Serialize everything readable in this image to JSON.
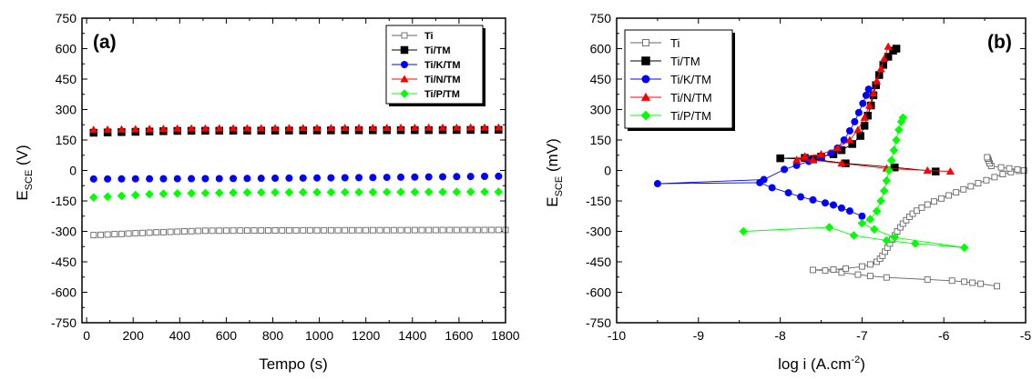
{
  "colors": {
    "Ti": "#666666",
    "Ti/TM": "#000000",
    "Ti/K/TM": "#0000ff",
    "Ti/N/TM": "#ff0000",
    "Ti/P/TM": "#00ff00"
  },
  "chart_data": [
    {
      "type": "scatter",
      "panel_label": "(a)",
      "xlabel": "Tempo (s)",
      "ylabel_main": "E",
      "ylabel_sub": "SCE",
      "ylabel_unit": " (V)",
      "xlim": [
        -20,
        1800
      ],
      "ylim": [
        -750,
        750
      ],
      "xticks": [
        0,
        200,
        400,
        600,
        800,
        1000,
        1200,
        1400,
        1600,
        1800
      ],
      "yticks": [
        -750,
        -600,
        -450,
        -300,
        -150,
        0,
        150,
        300,
        450,
        600,
        750
      ],
      "legend_position": "top-right",
      "series": [
        {
          "name": "Ti",
          "marker": "square-open",
          "x_start": 30,
          "x_step": 30,
          "x_end": 1800,
          "y": [
            [
              0,
              -320
            ],
            [
              300,
              -305
            ],
            [
              500,
              -297
            ],
            [
              900,
              -295
            ],
            [
              1800,
              -293
            ]
          ]
        },
        {
          "name": "Ti/TM",
          "marker": "square",
          "x_start": 30,
          "x_step": 60,
          "x_end": 1800,
          "y": [
            [
              0,
              185
            ],
            [
              400,
              195
            ],
            [
              1800,
              200
            ]
          ]
        },
        {
          "name": "Ti/K/TM",
          "marker": "circle",
          "x_start": 30,
          "x_step": 60,
          "x_end": 1800,
          "y": [
            [
              0,
              -42
            ],
            [
              600,
              -40
            ],
            [
              1200,
              -35
            ],
            [
              1800,
              -28
            ]
          ]
        },
        {
          "name": "Ti/N/TM",
          "marker": "triangle",
          "x_start": 30,
          "x_step": 60,
          "x_end": 1800,
          "y": [
            [
              0,
              200
            ],
            [
              400,
              207
            ],
            [
              1800,
              212
            ]
          ]
        },
        {
          "name": "Ti/P/TM",
          "marker": "diamond",
          "x_start": 30,
          "x_step": 60,
          "x_end": 1800,
          "y": [
            [
              0,
              -135
            ],
            [
              300,
              -115
            ],
            [
              700,
              -108
            ],
            [
              1800,
              -105
            ]
          ]
        }
      ]
    },
    {
      "type": "line",
      "panel_label": "(b)",
      "xlabel": "log i (A.cm",
      "xlabel_sup": "-2",
      "xlabel_close": ")",
      "ylabel_main": "E",
      "ylabel_sub": "SCE",
      "ylabel_unit": " (mV)",
      "xlim": [
        -10,
        -5
      ],
      "ylim": [
        -750,
        750
      ],
      "xticks": [
        -10,
        -9,
        -8,
        -7,
        -6,
        -5
      ],
      "yticks": [
        -750,
        -600,
        -450,
        -300,
        -150,
        0,
        150,
        300,
        450,
        600,
        750
      ],
      "legend_position": "top-left",
      "series": [
        {
          "name": "Ti",
          "marker": "square-open",
          "x_decreasing": true,
          "points": [
            [
              -5.35,
              -570
            ],
            [
              -5.55,
              -558
            ],
            [
              -5.65,
              -553
            ],
            [
              -5.75,
              -548
            ],
            [
              -5.9,
              -543
            ],
            [
              -6.2,
              -537
            ],
            [
              -6.7,
              -527
            ],
            [
              -6.9,
              -520
            ],
            [
              -7.05,
              -513
            ],
            [
              -7.25,
              -503
            ],
            [
              -7.45,
              -493
            ],
            [
              -7.6,
              -490
            ],
            [
              -7.35,
              -488
            ],
            [
              -7.2,
              -483
            ],
            [
              -7.0,
              -473
            ],
            [
              -6.9,
              -463
            ],
            [
              -6.82,
              -450
            ],
            [
              -6.78,
              -435
            ],
            [
              -6.75,
              -420
            ],
            [
              -6.72,
              -400
            ],
            [
              -6.69,
              -380
            ],
            [
              -6.66,
              -360
            ],
            [
              -6.63,
              -340
            ],
            [
              -6.6,
              -320
            ],
            [
              -6.57,
              -300
            ],
            [
              -6.53,
              -280
            ],
            [
              -6.5,
              -262
            ],
            [
              -6.46,
              -245
            ],
            [
              -6.42,
              -228
            ],
            [
              -6.38,
              -213
            ],
            [
              -6.33,
              -198
            ],
            [
              -6.27,
              -183
            ],
            [
              -6.2,
              -168
            ],
            [
              -6.12,
              -153
            ],
            [
              -6.03,
              -138
            ],
            [
              -5.94,
              -123
            ],
            [
              -5.85,
              -108
            ],
            [
              -5.76,
              -93
            ],
            [
              -5.67,
              -78
            ],
            [
              -5.58,
              -63
            ],
            [
              -5.48,
              -48
            ],
            [
              -5.38,
              -33
            ],
            [
              -5.28,
              -18
            ],
            [
              -5.18,
              -8
            ],
            [
              -5.08,
              -2
            ],
            [
              -5.02,
              0
            ],
            [
              -5.1,
              5
            ],
            [
              -5.2,
              10
            ],
            [
              -5.3,
              15
            ],
            [
              -5.42,
              22
            ],
            [
              -5.44,
              35
            ],
            [
              -5.45,
              48
            ],
            [
              -5.46,
              58
            ],
            [
              -5.47,
              65
            ]
          ]
        },
        {
          "name": "Ti/TM",
          "marker": "square",
          "x_decreasing": false,
          "points": [
            [
              -6.1,
              -5
            ],
            [
              -6.6,
              15
            ],
            [
              -7.2,
              35
            ],
            [
              -7.6,
              55
            ],
            [
              -8.0,
              60
            ],
            [
              -7.7,
              62
            ],
            [
              -7.5,
              68
            ],
            [
              -7.35,
              80
            ],
            [
              -7.25,
              100
            ],
            [
              -7.12,
              130
            ],
            [
              -7.02,
              170
            ],
            [
              -6.97,
              220
            ],
            [
              -6.93,
              270
            ],
            [
              -6.89,
              320
            ],
            [
              -6.86,
              370
            ],
            [
              -6.83,
              420
            ],
            [
              -6.79,
              470
            ],
            [
              -6.74,
              520
            ],
            [
              -6.68,
              560
            ],
            [
              -6.62,
              590
            ],
            [
              -6.58,
              600
            ]
          ]
        },
        {
          "name": "Ti/K/TM",
          "marker": "circle",
          "x_decreasing": false,
          "points": [
            [
              -7.0,
              -225
            ],
            [
              -7.15,
              -200
            ],
            [
              -7.25,
              -185
            ],
            [
              -7.35,
              -170
            ],
            [
              -7.45,
              -160
            ],
            [
              -7.6,
              -145
            ],
            [
              -7.75,
              -130
            ],
            [
              -7.9,
              -110
            ],
            [
              -8.1,
              -85
            ],
            [
              -8.25,
              -60
            ],
            [
              -9.5,
              -65
            ],
            [
              -8.2,
              -45
            ],
            [
              -7.95,
              5
            ],
            [
              -7.8,
              25
            ],
            [
              -7.65,
              45
            ],
            [
              -7.5,
              62
            ],
            [
              -7.38,
              85
            ],
            [
              -7.3,
              110
            ],
            [
              -7.22,
              150
            ],
            [
              -7.15,
              195
            ],
            [
              -7.09,
              240
            ],
            [
              -7.04,
              285
            ],
            [
              -6.99,
              330
            ],
            [
              -6.95,
              370
            ],
            [
              -6.92,
              400
            ]
          ]
        },
        {
          "name": "Ti/N/TM",
          "marker": "triangle",
          "x_decreasing": false,
          "points": [
            [
              -5.92,
              -5
            ],
            [
              -6.2,
              0
            ],
            [
              -6.7,
              10
            ],
            [
              -7.25,
              35
            ],
            [
              -7.6,
              50
            ],
            [
              -7.8,
              52
            ],
            [
              -7.7,
              70
            ],
            [
              -7.5,
              80
            ],
            [
              -7.3,
              110
            ],
            [
              -7.15,
              150
            ],
            [
              -7.05,
              200
            ],
            [
              -6.97,
              260
            ],
            [
              -6.91,
              320
            ],
            [
              -6.86,
              380
            ],
            [
              -6.82,
              440
            ],
            [
              -6.77,
              500
            ],
            [
              -6.73,
              550
            ],
            [
              -6.68,
              610
            ]
          ]
        },
        {
          "name": "Ti/P/TM",
          "marker": "diamond",
          "x_decreasing": false,
          "points": [
            [
              -8.45,
              -300
            ],
            [
              -7.4,
              -280
            ],
            [
              -7.1,
              -320
            ],
            [
              -6.7,
              -345
            ],
            [
              -6.35,
              -360
            ],
            [
              -5.75,
              -380
            ],
            [
              -6.6,
              -330
            ],
            [
              -6.85,
              -290
            ],
            [
              -7.0,
              -260
            ],
            [
              -6.9,
              -240
            ],
            [
              -6.82,
              -200
            ],
            [
              -6.77,
              -150
            ],
            [
              -6.73,
              -100
            ],
            [
              -6.7,
              -50
            ],
            [
              -6.67,
              0
            ],
            [
              -6.64,
              50
            ],
            [
              -6.61,
              100
            ],
            [
              -6.58,
              150
            ],
            [
              -6.55,
              200
            ],
            [
              -6.52,
              240
            ],
            [
              -6.5,
              260
            ]
          ]
        }
      ]
    }
  ]
}
